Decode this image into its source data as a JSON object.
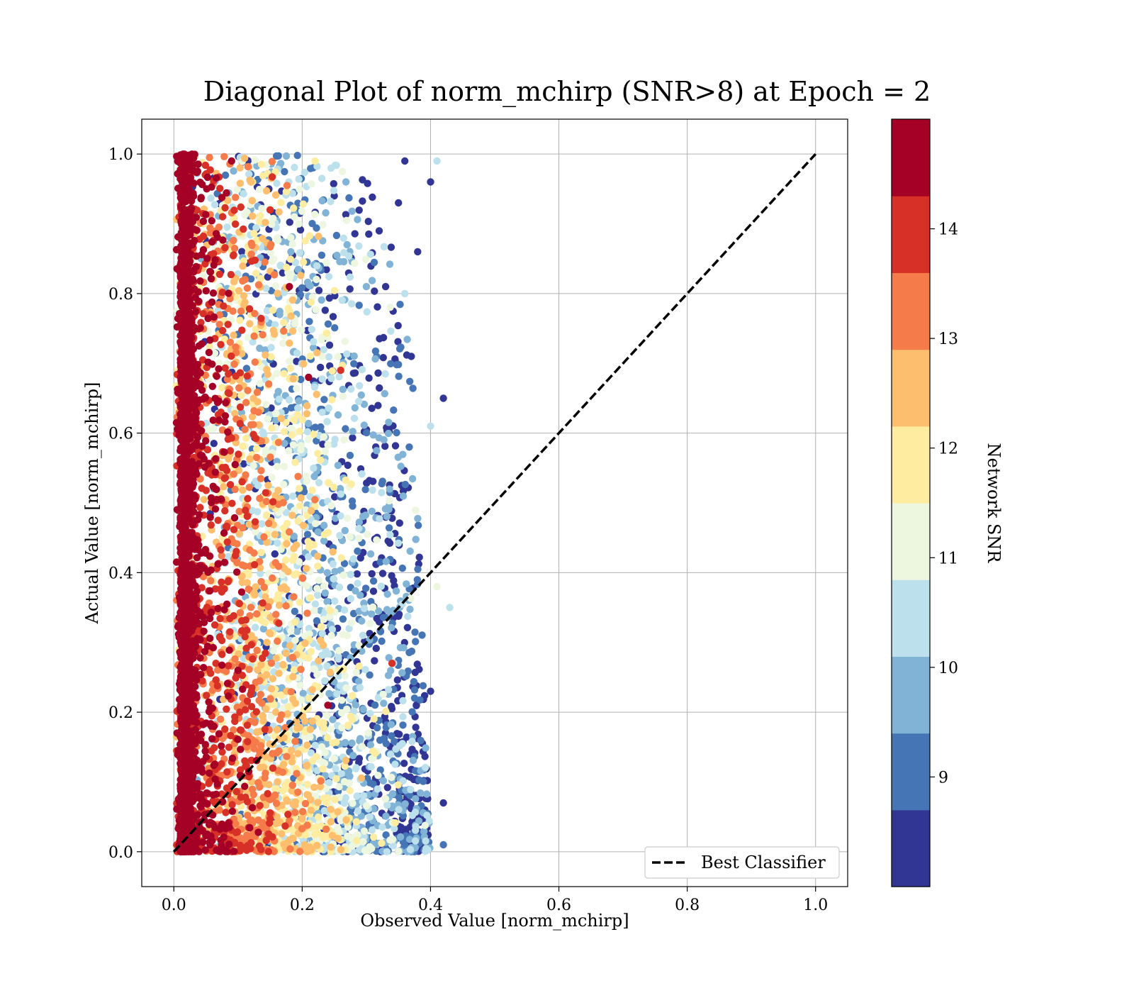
{
  "chart_data": {
    "type": "scatter",
    "title": "Diagonal Plot of norm_mchirp (SNR>8) at Epoch = 2",
    "xlabel": "Observed Value [norm_mchirp]",
    "ylabel": "Actual Value [norm_mchirp]",
    "xlim": [
      -0.05,
      1.05
    ],
    "ylim": [
      -0.05,
      1.05
    ],
    "x_ticks": [
      "0.0",
      "0.2",
      "0.4",
      "0.6",
      "0.8",
      "1.0"
    ],
    "y_ticks": [
      "0.0",
      "0.2",
      "0.4",
      "0.6",
      "0.8",
      "1.0"
    ],
    "grid": true,
    "reference_line": {
      "name": "Best Classifier",
      "x": [
        0.0,
        1.0
      ],
      "y": [
        0.0,
        1.0
      ],
      "style": "dashed",
      "color": "#000000"
    },
    "legend": {
      "placement": "lower-right",
      "entries": [
        "Best Classifier"
      ]
    },
    "colorbar": {
      "label": "Network SNR",
      "colormap": "RdYlBu_r (discrete, 10 levels)",
      "range": [
        8,
        15
      ],
      "tick_labels": [
        "9",
        "10",
        "11",
        "12",
        "13",
        "14"
      ],
      "colors": [
        "#313695",
        "#4575b4",
        "#80b3d6",
        "#bce1ec",
        "#edf7e0",
        "#feeca0",
        "#fdbe6e",
        "#f67b4a",
        "#d73027",
        "#a50026"
      ]
    },
    "scatter_summary": {
      "x_range": [
        0.0,
        0.43
      ],
      "y_range": [
        0.0,
        1.0
      ],
      "description_of_pattern": "Points concentrated near x≈0.02 (high SNR, red) spanning y 0–1; lower SNR (blue) points spread to x≈0.4, clustering near the diagonal at low y."
    },
    "scatter_points": [
      {
        "x": 0.42,
        "y": 0.65,
        "snr": 8.2
      },
      {
        "x": 0.43,
        "y": 0.35,
        "snr": 10.5
      },
      {
        "x": 0.41,
        "y": 0.99,
        "snr": 10.6
      },
      {
        "x": 0.4,
        "y": 0.96,
        "snr": 8.3
      },
      {
        "x": 0.41,
        "y": 0.38,
        "snr": 11.2
      },
      {
        "x": 0.42,
        "y": 0.07,
        "snr": 8.5
      },
      {
        "x": 0.42,
        "y": 0.01,
        "snr": 9.2
      },
      {
        "x": 0.4,
        "y": 0.23,
        "snr": 8.4
      },
      {
        "x": 0.4,
        "y": 0.61,
        "snr": 10.2
      },
      {
        "x": 0.38,
        "y": 0.86,
        "snr": 8.3
      },
      {
        "x": 0.37,
        "y": 0.71,
        "snr": 8.4
      },
      {
        "x": 0.36,
        "y": 0.99,
        "snr": 8.2
      },
      {
        "x": 0.35,
        "y": 0.93,
        "snr": 8.4
      },
      {
        "x": 0.32,
        "y": 0.89,
        "snr": 8.2
      },
      {
        "x": 0.3,
        "y": 0.81,
        "snr": 9.5
      },
      {
        "x": 0.33,
        "y": 0.81,
        "snr": 8.3
      },
      {
        "x": 0.36,
        "y": 0.8,
        "snr": 10.4
      },
      {
        "x": 0.25,
        "y": 0.94,
        "snr": 8.6
      },
      {
        "x": 0.27,
        "y": 0.87,
        "snr": 9.6
      },
      {
        "x": 0.22,
        "y": 0.99,
        "snr": 12.0
      },
      {
        "x": 0.19,
        "y": 0.92,
        "snr": 9.2
      },
      {
        "x": 0.18,
        "y": 0.81,
        "snr": 14.5
      },
      {
        "x": 0.21,
        "y": 0.68,
        "snr": 14.6
      },
      {
        "x": 0.26,
        "y": 0.69,
        "snr": 13.8
      },
      {
        "x": 0.15,
        "y": 0.92,
        "snr": 14.1
      },
      {
        "x": 0.09,
        "y": 0.99,
        "snr": 14.5
      },
      {
        "x": 0.12,
        "y": 0.96,
        "snr": 12.8
      },
      {
        "x": 0.1,
        "y": 0.26,
        "snr": 14.7
      },
      {
        "x": 0.24,
        "y": 0.21,
        "snr": 14.5
      },
      {
        "x": 0.34,
        "y": 0.27,
        "snr": 13.9
      }
    ]
  }
}
